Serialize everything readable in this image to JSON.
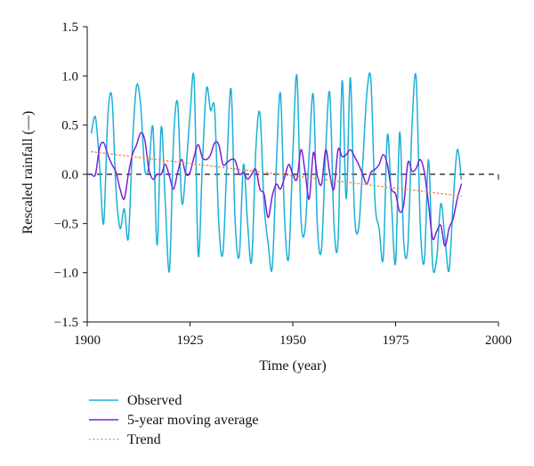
{
  "chart_data": {
    "type": "line",
    "xlabel": "Time (year)",
    "ylabel": "Rescaled rainfall (—)",
    "xlim": [
      1900,
      2000
    ],
    "ylim": [
      -1.5,
      1.5
    ],
    "x_ticks": [
      1900,
      1925,
      1950,
      1975,
      2000
    ],
    "x_tick_labels": [
      "1900",
      "1925",
      "1950",
      "1975",
      "2000"
    ],
    "y_ticks": [
      -1.5,
      -1.0,
      -0.5,
      0.0,
      0.5,
      1.0,
      1.5
    ],
    "y_tick_labels": [
      "−1.5",
      "−1.0",
      "−0.5",
      "0.0",
      "0.5",
      "1.0",
      "1.5"
    ],
    "grid": false,
    "zero_line": true,
    "legend_position": "bottom",
    "series": [
      {
        "name": "Observed",
        "color": "#1ab0d8",
        "style": "solid",
        "x": [
          1901,
          1902,
          1903,
          1904,
          1905,
          1906,
          1907,
          1908,
          1909,
          1910,
          1911,
          1912,
          1913,
          1914,
          1915,
          1916,
          1917,
          1918,
          1919,
          1920,
          1921,
          1922,
          1923,
          1924,
          1925,
          1926,
          1927,
          1928,
          1929,
          1930,
          1931,
          1932,
          1933,
          1934,
          1935,
          1936,
          1937,
          1938,
          1939,
          1940,
          1941,
          1942,
          1943,
          1944,
          1945,
          1946,
          1947,
          1948,
          1949,
          1950,
          1951,
          1952,
          1953,
          1954,
          1955,
          1956,
          1957,
          1958,
          1959,
          1960,
          1961,
          1962,
          1963,
          1964,
          1965,
          1966,
          1967,
          1968,
          1969,
          1970,
          1971,
          1972,
          1973,
          1974,
          1975,
          1976,
          1977,
          1978,
          1979,
          1980,
          1981,
          1982,
          1983,
          1984,
          1985,
          1986,
          1987,
          1988,
          1989,
          1990,
          1991
        ],
        "values": [
          0.42,
          0.58,
          0.1,
          -0.5,
          0.58,
          0.78,
          -0.15,
          -0.55,
          -0.35,
          -0.65,
          0.3,
          0.9,
          0.7,
          0.05,
          0.08,
          0.47,
          -0.72,
          0.48,
          -0.3,
          -0.98,
          0.35,
          0.72,
          -0.28,
          0.05,
          0.6,
          0.96,
          -0.82,
          0.1,
          0.87,
          0.65,
          0.65,
          -0.5,
          -0.8,
          0.14,
          0.86,
          -0.5,
          -0.82,
          0.1,
          -0.5,
          -0.88,
          0.25,
          0.62,
          -0.3,
          -0.7,
          -0.95,
          0.1,
          0.82,
          -0.45,
          -0.85,
          0.2,
          1.0,
          -0.45,
          -0.55,
          0.22,
          0.8,
          -0.55,
          -0.75,
          0.25,
          0.82,
          -0.5,
          -0.68,
          0.95,
          -0.25,
          0.98,
          -0.4,
          -0.55,
          0.1,
          0.82,
          0.95,
          -0.28,
          -0.55,
          -0.85,
          0.4,
          -0.3,
          -0.9,
          0.43,
          -0.7,
          -0.72,
          0.5,
          0.98,
          -0.52,
          -0.88,
          0.15,
          -0.92,
          -0.85,
          -0.3,
          -0.65,
          -0.98,
          -0.28,
          0.25,
          -0.05
        ]
      },
      {
        "name": "5-year moving average",
        "color": "#7b1fd6",
        "style": "solid",
        "x": [
          1901,
          1902,
          1903,
          1904,
          1905,
          1906,
          1907,
          1908,
          1909,
          1910,
          1911,
          1912,
          1913,
          1914,
          1915,
          1916,
          1917,
          1918,
          1919,
          1920,
          1921,
          1922,
          1923,
          1924,
          1925,
          1926,
          1927,
          1928,
          1929,
          1930,
          1931,
          1932,
          1933,
          1934,
          1935,
          1936,
          1937,
          1938,
          1939,
          1940,
          1941,
          1942,
          1943,
          1944,
          1945,
          1946,
          1947,
          1948,
          1949,
          1950,
          1951,
          1952,
          1953,
          1954,
          1955,
          1956,
          1957,
          1958,
          1959,
          1960,
          1961,
          1962,
          1963,
          1964,
          1965,
          1966,
          1967,
          1968,
          1969,
          1970,
          1971,
          1972,
          1973,
          1974,
          1975,
          1976,
          1977,
          1978,
          1979,
          1980,
          1981,
          1982,
          1983,
          1984,
          1985,
          1986,
          1987,
          1988,
          1989,
          1990,
          1991
        ],
        "values": [
          0.0,
          0.0,
          0.27,
          0.32,
          0.2,
          0.1,
          0.02,
          -0.15,
          -0.25,
          0.0,
          0.2,
          0.3,
          0.42,
          0.35,
          0.05,
          -0.05,
          0.0,
          0.0,
          0.1,
          -0.02,
          -0.15,
          0.02,
          0.15,
          0.0,
          0.02,
          0.18,
          0.3,
          0.17,
          0.15,
          0.2,
          0.32,
          0.3,
          0.1,
          0.12,
          0.15,
          0.14,
          0.0,
          0.02,
          -0.05,
          0.0,
          0.05,
          -0.15,
          -0.2,
          -0.44,
          -0.22,
          -0.1,
          -0.15,
          -0.03,
          0.1,
          0.0,
          -0.05,
          0.25,
          0.02,
          -0.25,
          0.22,
          -0.02,
          -0.1,
          0.25,
          0.0,
          -0.15,
          0.25,
          0.18,
          0.2,
          0.25,
          0.18,
          0.1,
          0.0,
          -0.1,
          0.02,
          0.05,
          0.1,
          0.2,
          0.1,
          -0.15,
          -0.2,
          -0.38,
          -0.3,
          0.12,
          0.03,
          0.06,
          0.15,
          0.02,
          -0.3,
          -0.65,
          -0.58,
          -0.52,
          -0.73,
          -0.55,
          -0.45,
          -0.25,
          -0.1
        ]
      },
      {
        "name": "Trend",
        "color": "#f08a4b",
        "style": "dotted",
        "x": [
          1901,
          1991
        ],
        "values": [
          0.23,
          -0.22
        ]
      }
    ]
  }
}
